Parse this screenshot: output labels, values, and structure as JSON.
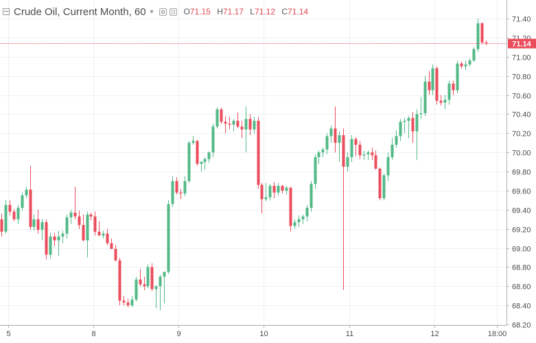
{
  "legend": {
    "title": "Crude Oil, Current Month, 60",
    "open_label": "O",
    "open": "71.15",
    "high_label": "H",
    "high": "71.17",
    "low_label": "L",
    "low": "71.12",
    "close_label": "C",
    "close": "71.14",
    "value_color": "#e0454f"
  },
  "last_price": "71.14",
  "chart_data": {
    "type": "candlestick",
    "title": "Crude Oil, Current Month, 60",
    "interval": "60",
    "ylim": [
      68.2,
      71.5
    ],
    "y_ticks": [
      "71.40",
      "71.20",
      "71.00",
      "70.80",
      "70.60",
      "70.40",
      "70.20",
      "70.00",
      "69.80",
      "69.60",
      "69.40",
      "69.20",
      "69.00",
      "68.80",
      "68.60",
      "68.40",
      "68.20"
    ],
    "x_ticks": [
      "5",
      "8",
      "9",
      "10",
      "11",
      "12",
      "18:00"
    ],
    "up_color": "#53b987",
    "down_color": "#eb4d5c",
    "grid": true,
    "candles": [
      [
        69.3,
        69.36,
        69.12,
        69.17
      ],
      [
        69.17,
        69.5,
        69.15,
        69.45
      ],
      [
        69.45,
        69.5,
        69.34,
        69.38
      ],
      [
        69.38,
        69.41,
        69.28,
        69.3
      ],
      [
        69.3,
        69.45,
        69.25,
        69.42
      ],
      [
        69.42,
        69.58,
        69.39,
        69.55
      ],
      [
        69.55,
        69.64,
        69.52,
        69.61
      ],
      [
        69.61,
        69.86,
        69.19,
        69.22
      ],
      [
        69.22,
        69.35,
        69.18,
        69.3
      ],
      [
        69.3,
        69.4,
        69.15,
        69.19
      ],
      [
        69.19,
        69.3,
        69.08,
        69.27
      ],
      [
        69.27,
        69.3,
        68.88,
        68.93
      ],
      [
        68.93,
        69.16,
        68.89,
        69.12
      ],
      [
        69.12,
        69.16,
        69.02,
        69.08
      ],
      [
        69.08,
        69.18,
        68.92,
        69.12
      ],
      [
        69.12,
        69.18,
        69.05,
        69.15
      ],
      [
        69.15,
        69.35,
        69.1,
        69.32
      ],
      [
        69.32,
        69.4,
        69.25,
        69.37
      ],
      [
        69.37,
        69.64,
        69.3,
        69.33
      ],
      [
        69.33,
        69.39,
        69.2,
        69.24
      ],
      [
        69.24,
        69.35,
        69.07,
        69.08
      ],
      [
        69.08,
        69.38,
        68.9,
        69.35
      ],
      [
        69.35,
        69.37,
        69.29,
        69.33
      ],
      [
        69.33,
        69.38,
        69.13,
        69.17
      ],
      [
        69.17,
        69.28,
        69.13,
        69.13
      ],
      [
        69.13,
        69.18,
        69.1,
        69.15
      ],
      [
        69.15,
        69.2,
        69.03,
        69.05
      ],
      [
        69.05,
        69.1,
        68.99,
        68.99
      ],
      [
        68.99,
        69.03,
        68.86,
        68.87
      ],
      [
        68.87,
        68.9,
        68.4,
        68.45
      ],
      [
        68.45,
        68.5,
        68.4,
        68.43
      ],
      [
        68.43,
        68.47,
        68.38,
        68.4
      ],
      [
        68.4,
        68.5,
        68.38,
        68.46
      ],
      [
        68.46,
        68.7,
        68.44,
        68.67
      ],
      [
        68.67,
        68.78,
        68.6,
        68.62
      ],
      [
        68.62,
        68.7,
        68.56,
        68.6
      ],
      [
        68.6,
        68.83,
        68.58,
        68.8
      ],
      [
        68.8,
        68.84,
        68.55,
        68.57
      ],
      [
        68.57,
        68.61,
        68.37,
        68.6
      ],
      [
        68.6,
        68.72,
        68.35,
        68.7
      ],
      [
        68.7,
        68.75,
        68.42,
        68.75
      ],
      [
        68.75,
        69.5,
        68.73,
        69.46
      ],
      [
        69.46,
        69.75,
        69.43,
        69.7
      ],
      [
        69.7,
        69.74,
        69.56,
        69.58
      ],
      [
        69.58,
        69.62,
        69.51,
        69.57
      ],
      [
        69.57,
        69.75,
        69.54,
        69.7
      ],
      [
        69.7,
        70.12,
        69.68,
        70.1
      ],
      [
        70.1,
        70.17,
        70.08,
        70.12
      ],
      [
        70.12,
        70.13,
        69.86,
        69.88
      ],
      [
        69.88,
        69.91,
        69.8,
        69.9
      ],
      [
        69.9,
        69.95,
        69.82,
        69.93
      ],
      [
        69.93,
        70.01,
        69.89,
        70.0
      ],
      [
        70.0,
        70.3,
        69.95,
        70.27
      ],
      [
        70.27,
        70.47,
        70.25,
        70.45
      ],
      [
        70.45,
        70.47,
        70.3,
        70.32
      ],
      [
        70.32,
        70.38,
        70.2,
        70.3
      ],
      [
        70.3,
        70.37,
        70.24,
        70.29
      ],
      [
        70.29,
        70.35,
        70.22,
        70.33
      ],
      [
        70.33,
        70.42,
        70.25,
        70.27
      ],
      [
        70.27,
        70.33,
        70.15,
        70.24
      ],
      [
        70.24,
        70.48,
        70.0,
        70.35
      ],
      [
        70.35,
        70.4,
        70.18,
        70.24
      ],
      [
        70.24,
        70.37,
        70.2,
        70.33
      ],
      [
        70.33,
        70.37,
        69.62,
        69.66
      ],
      [
        69.66,
        69.68,
        69.36,
        69.51
      ],
      [
        69.51,
        69.68,
        69.49,
        69.53
      ],
      [
        69.53,
        69.67,
        69.5,
        69.65
      ],
      [
        69.65,
        69.69,
        69.52,
        69.58
      ],
      [
        69.58,
        69.68,
        69.55,
        69.65
      ],
      [
        69.65,
        69.66,
        69.57,
        69.6
      ],
      [
        69.6,
        69.65,
        69.56,
        69.63
      ],
      [
        69.63,
        69.64,
        69.17,
        69.23
      ],
      [
        69.23,
        69.3,
        69.2,
        69.27
      ],
      [
        69.27,
        69.34,
        69.22,
        69.3
      ],
      [
        69.3,
        69.35,
        69.25,
        69.33
      ],
      [
        69.33,
        69.45,
        69.28,
        69.42
      ],
      [
        69.42,
        69.7,
        69.38,
        69.67
      ],
      [
        69.67,
        69.98,
        69.62,
        69.95
      ],
      [
        69.95,
        70.02,
        69.88,
        70.0
      ],
      [
        70.0,
        70.05,
        69.95,
        70.03
      ],
      [
        70.03,
        70.2,
        69.98,
        70.17
      ],
      [
        70.17,
        70.28,
        70.1,
        70.25
      ],
      [
        70.25,
        70.48,
        70.0,
        70.1
      ],
      [
        70.1,
        70.22,
        69.9,
        70.18
      ],
      [
        70.18,
        70.25,
        68.56,
        69.85
      ],
      [
        69.85,
        70.0,
        69.8,
        69.95
      ],
      [
        69.95,
        70.18,
        69.9,
        70.14
      ],
      [
        70.14,
        70.16,
        69.96,
        70.08
      ],
      [
        70.08,
        70.12,
        69.93,
        69.97
      ],
      [
        69.97,
        70.02,
        69.92,
        69.98
      ],
      [
        69.98,
        70.02,
        69.92,
        70.0
      ],
      [
        70.0,
        70.05,
        69.92,
        69.97
      ],
      [
        69.97,
        70.02,
        69.82,
        69.83
      ],
      [
        69.83,
        69.84,
        69.5,
        69.52
      ],
      [
        69.52,
        69.78,
        69.5,
        69.76
      ],
      [
        69.76,
        70.0,
        69.7,
        69.95
      ],
      [
        69.95,
        70.15,
        69.92,
        70.08
      ],
      [
        70.08,
        70.23,
        70.05,
        70.17
      ],
      [
        70.17,
        70.35,
        70.12,
        70.32
      ],
      [
        70.32,
        70.36,
        70.2,
        70.33
      ],
      [
        70.33,
        70.38,
        70.15,
        70.36
      ],
      [
        70.36,
        70.42,
        70.1,
        70.22
      ],
      [
        70.22,
        70.45,
        69.92,
        70.4
      ],
      [
        70.4,
        70.58,
        70.35,
        70.41
      ],
      [
        70.41,
        70.8,
        70.38,
        70.74
      ],
      [
        70.74,
        70.85,
        70.6,
        70.65
      ],
      [
        70.65,
        70.92,
        70.6,
        70.88
      ],
      [
        70.88,
        70.9,
        70.5,
        70.54
      ],
      [
        70.54,
        70.6,
        70.49,
        70.52
      ],
      [
        70.52,
        70.6,
        70.45,
        70.55
      ],
      [
        70.55,
        70.75,
        70.5,
        70.72
      ],
      [
        70.72,
        70.75,
        70.6,
        70.65
      ],
      [
        70.65,
        70.96,
        70.62,
        70.93
      ],
      [
        70.93,
        70.95,
        70.88,
        70.9
      ],
      [
        70.9,
        70.96,
        70.86,
        70.92
      ],
      [
        70.92,
        70.98,
        70.9,
        70.96
      ],
      [
        70.96,
        71.1,
        70.95,
        71.08
      ],
      [
        71.08,
        71.4,
        71.05,
        71.35
      ],
      [
        71.35,
        71.36,
        71.13,
        71.15
      ],
      [
        71.15,
        71.17,
        71.12,
        71.14
      ]
    ]
  }
}
